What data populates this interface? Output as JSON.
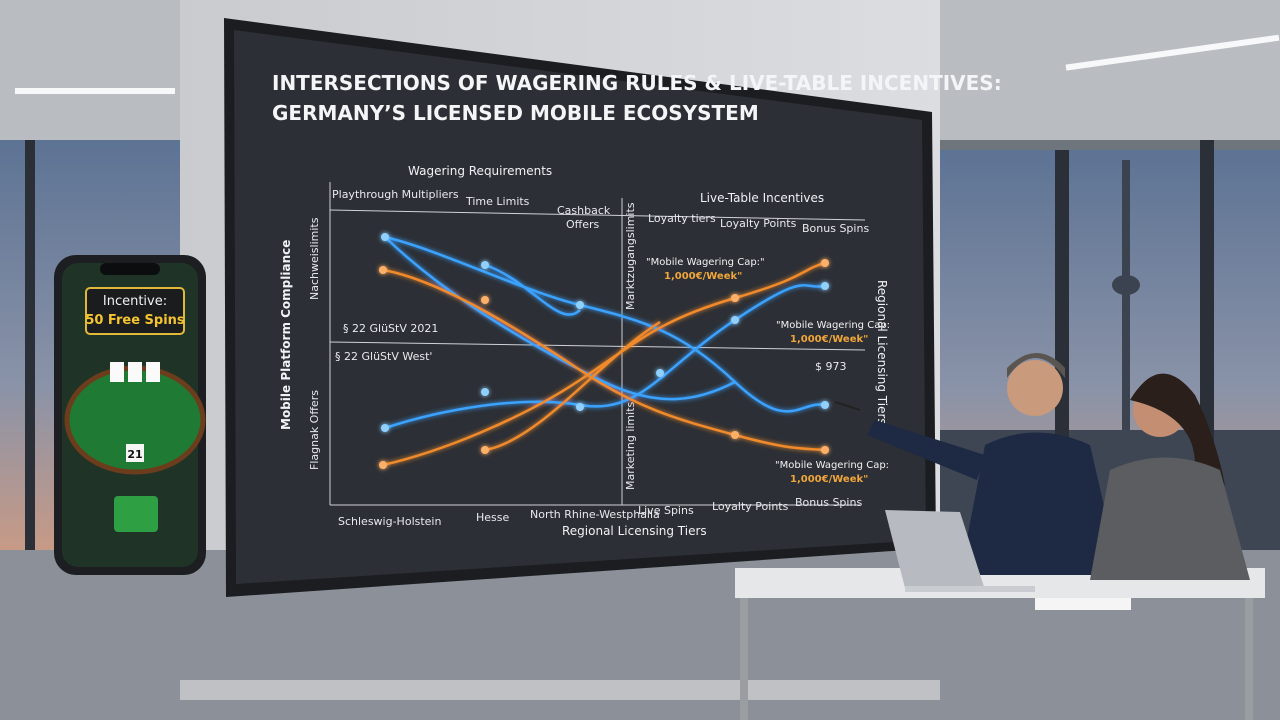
{
  "screen": {
    "title_lines": [
      "INTERSECTIONS OF WAGERING RULES & LIVE-TABLE INCENTIVES:",
      "GERMANY’S LICENSED MOBILE ECOSYSTEM"
    ],
    "group_headers": [
      "Wagering Requirements",
      "Live-Table Incentives"
    ],
    "column_headers": [
      "Playthrough Multipliers",
      "Time Limits",
      "Cashback",
      "Offers",
      "Loyalty tiers",
      "Loyalty Points",
      "Bonus Spins"
    ],
    "row_labels": [
      "§ 22 GlüStV 2021",
      "§ 22 GlüStV West'"
    ],
    "vertical_labels": [
      "Mobile Platform Compliance",
      "Nachweislimits",
      "Flagnak Offers",
      "Marktzugangslimits",
      "Marketing limits",
      "Regional Licensing Tiers"
    ],
    "callouts": [
      {
        "text": "\"Mobile Wagering Cap:\"",
        "amount": "1,000€/Week\""
      },
      {
        "text": "\"Mobile Wagering Cap:",
        "amount": "1,000€/Week\""
      },
      {
        "text": "\"Mobile Wagering Cap:",
        "amount": "1,000€/Week\""
      }
    ],
    "value_note": "$ 973",
    "bottom_labels": [
      "Schleswig-Holstein",
      "Hesse",
      "North Rhine-Westphalia",
      "Live Spins",
      "Loyalty Points",
      "Bonus Spins"
    ],
    "x_axis_title": "Regional Licensing Tiers"
  },
  "phone": {
    "badge_label": "Incentive:",
    "badge_value": "50 Free Spins",
    "card_total": "21"
  }
}
